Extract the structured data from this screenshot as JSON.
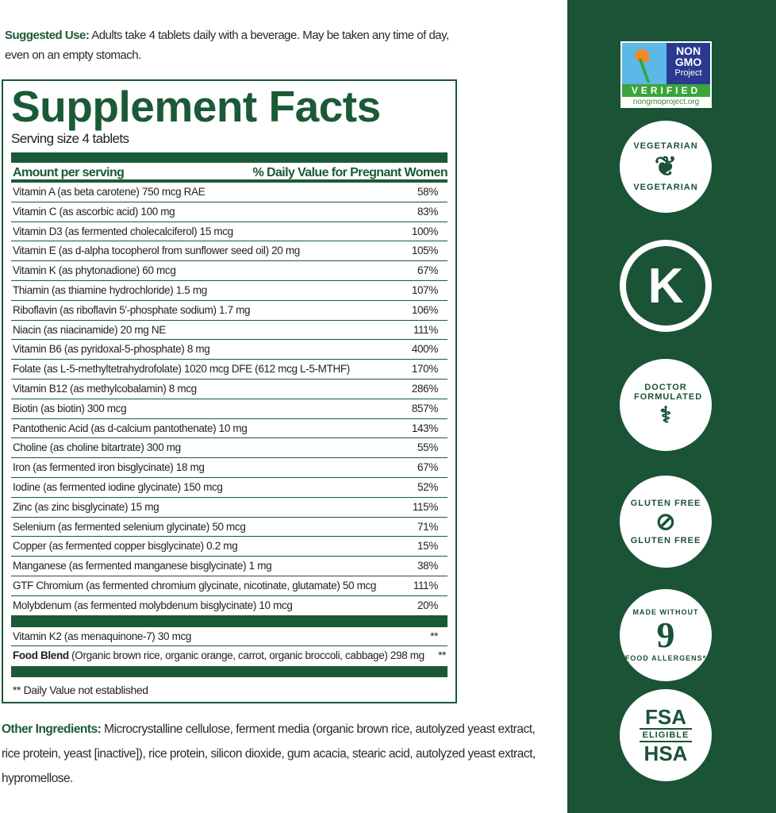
{
  "suggested_use": {
    "label": "Suggested Use:",
    "text": " Adults take 4 tablets daily with a beverage. May be taken any time of day, even on an empty stomach."
  },
  "facts": {
    "title": "Supplement Facts",
    "serving": "Serving size 4 tablets",
    "header_left": "Amount per serving",
    "header_right": "% Daily Value for Pregnant Women",
    "rows": [
      [
        "Vitamin A (as beta carotene) 750 mcg RAE",
        "58%"
      ],
      [
        "Vitamin C (as ascorbic acid) 100 mg",
        "83%"
      ],
      [
        "Vitamin D3 (as fermented cholecalciferol) 15 mcg",
        "100%"
      ],
      [
        "Vitamin E (as d-alpha tocopherol from sunflower seed oil) 20 mg",
        "105%"
      ],
      [
        "Vitamin K (as phytonadione) 60 mcg",
        "67%"
      ],
      [
        "Thiamin (as thiamine hydrochloride) 1.5 mg",
        "107%"
      ],
      [
        "Riboflavin (as riboflavin 5'-phosphate sodium) 1.7 mg",
        "106%"
      ],
      [
        "Niacin (as niacinamide) 20 mg NE",
        "111%"
      ],
      [
        "Vitamin B6 (as pyridoxal-5-phosphate) 8 mg",
        "400%"
      ],
      [
        "Folate (as L-5-methyltetrahydrofolate) 1020 mcg DFE (612 mcg L-5-MTHF)",
        "170%"
      ],
      [
        "Vitamin B12 (as methylcobalamin) 8 mcg",
        "286%"
      ],
      [
        "Biotin (as biotin) 300 mcg",
        "857%"
      ],
      [
        "Pantothenic Acid (as d-calcium pantothenate) 10 mg",
        "143%"
      ],
      [
        "Choline (as choline bitartrate) 300 mg",
        "55%"
      ],
      [
        "Iron (as fermented iron bisglycinate) 18 mg",
        "67%"
      ],
      [
        "Iodine (as fermented iodine glycinate) 150 mcg",
        "52%"
      ],
      [
        "Zinc (as zinc bisglycinate) 15 mg",
        "115%"
      ],
      [
        "Selenium (as fermented selenium glycinate) 50 mcg",
        "71%"
      ],
      [
        "Copper (as fermented copper bisglycinate) 0.2 mg",
        "15%"
      ],
      [
        "Manganese (as fermented manganese bisglycinate) 1 mg",
        "38%"
      ],
      [
        "GTF Chromium (as fermented chromium glycinate, nicotinate, glutamate) 50 mcg",
        "111%"
      ],
      [
        "Molybdenum (as fermented molybdenum bisglycinate) 10 mcg",
        "20%"
      ]
    ],
    "k2": {
      "name": "Vitamin K2 (as menaquinone-7) 30 mcg",
      "dv": "**"
    },
    "food_blend": {
      "label": "Food Blend",
      "text": " (Organic brown rice, organic orange, carrot, organic broccoli, cabbage) 298 mg",
      "dv": "**"
    },
    "footnote": "** Daily Value not established"
  },
  "other_ingredients": {
    "label": "Other Ingredients:",
    "text": " Microcrystalline cellulose, ferment media (organic brown rice, autolyzed yeast extract, rice protein, yeast [inactive]), rice protein, silicon dioxide, gum acacia, stearic acid, autolyzed yeast extract, hypromellose."
  },
  "badges": {
    "gmo": {
      "l1": "NON",
      "l2": "GMO",
      "l3": "Project",
      "verified": "VERIFIED",
      "url": "nongmoproject.org"
    },
    "vegetarian": "VEGETARIAN",
    "kosher": "K",
    "doctor": "DOCTOR FORMULATED",
    "gluten": "GLUTEN FREE",
    "allergen_top": "MADE WITHOUT",
    "allergen_num": "9",
    "allergen_bottom": "FOOD ALLERGENS*",
    "fsa": "FSA",
    "eligible": "ELIGIBLE",
    "hsa": "HSA"
  },
  "colors": {
    "brand_green": "#1b5a36",
    "panel_green": "#1a5336"
  }
}
